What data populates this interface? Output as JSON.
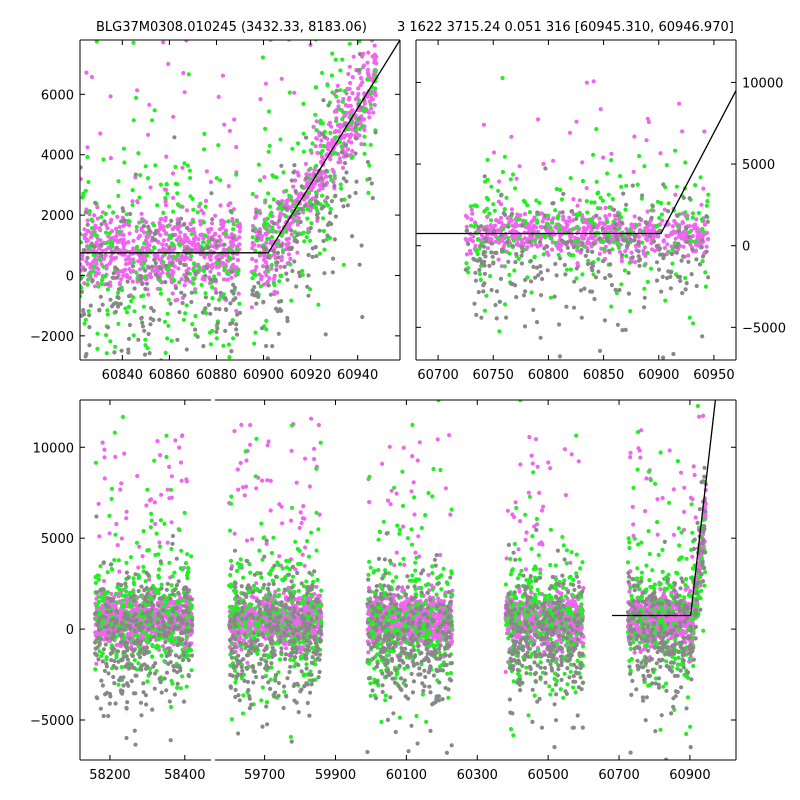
{
  "title": {
    "left": "BLG37M0308.010245 (3432.33, 8183.06)",
    "right": "3 1622 3715.24 0.051 316 [60945.310, 60946.970]"
  },
  "colors": {
    "pink": "#ee66ee",
    "green": "#22ee22",
    "gray": "#888888",
    "line": "#000000"
  },
  "chart_data": [
    {
      "id": "zoom",
      "type": "scatter",
      "xlim": [
        60822,
        60958
      ],
      "ylim": [
        -2800,
        7800
      ],
      "xticks": [
        60840,
        60860,
        60880,
        60900,
        60920,
        60940
      ],
      "xtick_labels": [
        "60840",
        "60860",
        "60880",
        "60900",
        "60920",
        "60940"
      ],
      "yticks": [
        -2000,
        0,
        2000,
        4000,
        6000
      ],
      "ytick_labels": [
        "−2000",
        "0",
        "2000",
        "4000",
        "6000"
      ],
      "yaxis_side": "left",
      "fit": {
        "x": [
          60822,
          60902,
          60958
        ],
        "y": [
          750,
          750,
          7800
        ]
      },
      "series": [
        {
          "name": "pink",
          "color": "pink",
          "seed": 11,
          "density": 10,
          "segments": [
            {
              "x0": 60822,
              "x1": 60890,
              "base": 800,
              "scatter": 700
            },
            {
              "x0": 60895,
              "x1": 60948,
              "base": null,
              "scatter": 700
            }
          ]
        },
        {
          "name": "green",
          "color": "green",
          "seed": 12,
          "density": 4,
          "segments": [
            {
              "x0": 60822,
              "x1": 60890,
              "base": 500,
              "scatter": 1900
            },
            {
              "x0": 60895,
              "x1": 60948,
              "base": null,
              "scatter": 1600
            }
          ]
        },
        {
          "name": "gray",
          "color": "gray",
          "seed": 13,
          "density": 3,
          "segments": [
            {
              "x0": 60822,
              "x1": 60890,
              "base": -400,
              "scatter": 1500
            },
            {
              "x0": 60895,
              "x1": 60948,
              "base": null,
              "scatter": 1500
            }
          ]
        }
      ]
    },
    {
      "id": "season",
      "type": "scatter",
      "xlim": [
        60680,
        60970
      ],
      "ylim": [
        -7000,
        12600
      ],
      "xticks": [
        60700,
        60750,
        60800,
        60850,
        60900,
        60950
      ],
      "xtick_labels": [
        "60700",
        "60750",
        "60800",
        "60850",
        "60900",
        "60950"
      ],
      "yticks": [
        -5000,
        0,
        5000,
        10000
      ],
      "ytick_labels": [
        "−5000",
        "0",
        "5000",
        "10000"
      ],
      "yaxis_side": "right",
      "fit": {
        "x": [
          60680,
          60902,
          60970
        ],
        "y": [
          750,
          750,
          9500
        ]
      },
      "series": [
        {
          "name": "pink",
          "color": "pink",
          "seed": 21,
          "density": 3,
          "segments": [
            {
              "x0": 60725,
              "x1": 60945,
              "base": 800,
              "scatter": 700
            }
          ]
        },
        {
          "name": "green",
          "color": "green",
          "seed": 22,
          "density": 1.2,
          "segments": [
            {
              "x0": 60725,
              "x1": 60945,
              "base": 400,
              "scatter": 1900
            }
          ]
        },
        {
          "name": "gray",
          "color": "gray",
          "seed": 23,
          "density": 1.2,
          "segments": [
            {
              "x0": 60725,
              "x1": 60945,
              "base": -600,
              "scatter": 1700
            }
          ]
        }
      ]
    },
    {
      "id": "full",
      "type": "scatter",
      "panels": [
        {
          "xlim": [
            58120,
            58470
          ],
          "xticks": [
            58200,
            58400
          ],
          "xtick_labels": [
            "58200",
            "58400"
          ]
        },
        {
          "xlim": [
            59560,
            61030
          ],
          "xticks": [
            59700,
            59900,
            60100,
            60300,
            60500,
            60700,
            60900
          ],
          "xtick_labels": [
            "59700",
            "59900",
            "60100",
            "60300",
            "60500",
            "60700",
            "60900"
          ]
        }
      ],
      "ylim": [
        -7200,
        12600
      ],
      "yticks": [
        -5000,
        0,
        5000,
        10000
      ],
      "ytick_labels": [
        "−5000",
        "0",
        "5000",
        "10000"
      ],
      "yaxis_side": "left",
      "fit": {
        "x": [
          60680,
          60902,
          60972
        ],
        "y": [
          750,
          750,
          12600
        ]
      },
      "seasons": [
        {
          "x0": 58160,
          "x1": 58420,
          "panel": 0
        },
        {
          "x0": 59600,
          "x1": 59860,
          "panel": 1
        },
        {
          "x0": 59990,
          "x1": 60230,
          "panel": 1
        },
        {
          "x0": 60380,
          "x1": 60600,
          "panel": 1
        },
        {
          "x0": 60725,
          "x1": 60945,
          "panel": 1
        }
      ],
      "series": [
        {
          "name": "pink",
          "color": "pink",
          "seed": 31,
          "density": 1.1,
          "base": 500,
          "scatter": 700
        },
        {
          "name": "green",
          "color": "green",
          "seed": 32,
          "density": 0.45,
          "base": 400,
          "scatter": 2000
        },
        {
          "name": "gray",
          "color": "gray",
          "seed": 33,
          "density": 0.45,
          "base": -300,
          "scatter": 1800
        }
      ]
    }
  ]
}
